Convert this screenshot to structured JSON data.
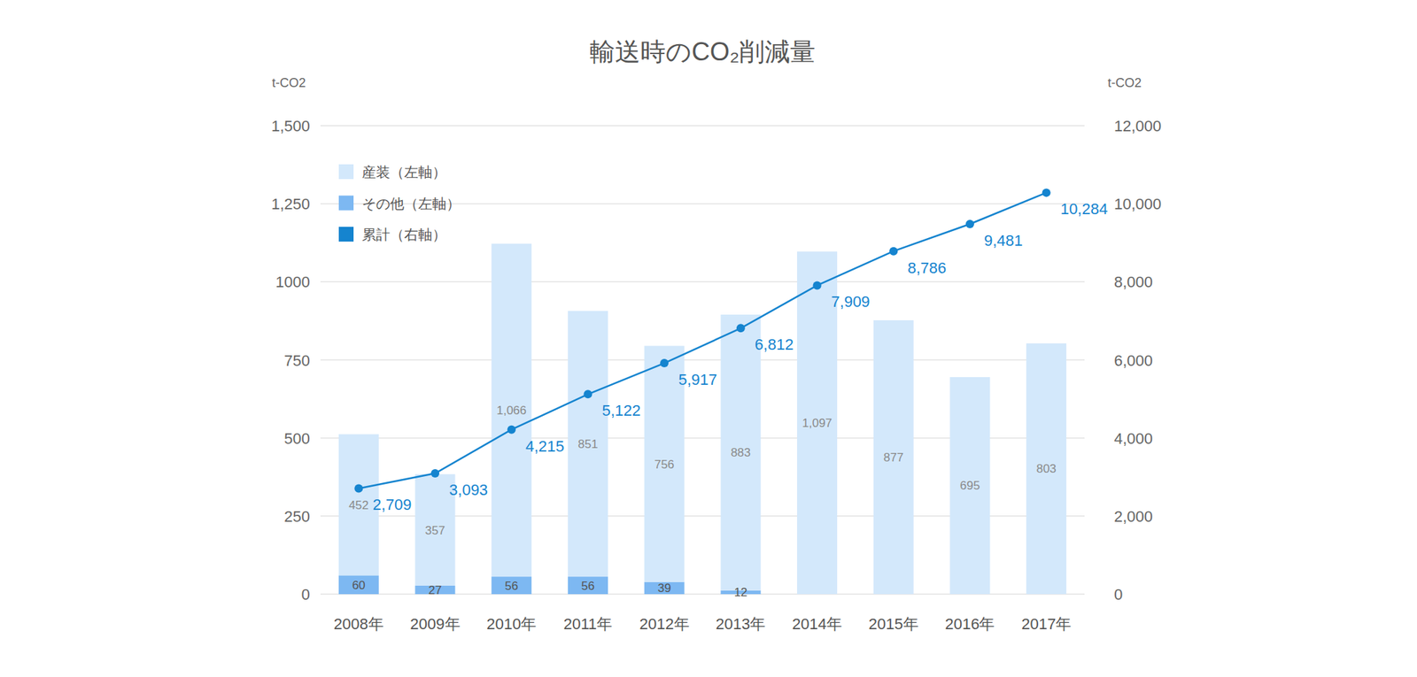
{
  "chart_data": {
    "type": "bar",
    "title": "輸送時のCO₂削減量",
    "ylabel": "t-CO2",
    "y2label": "t-CO2",
    "categories": [
      "2008年",
      "2009年",
      "2010年",
      "2011年",
      "2012年",
      "2013年",
      "2014年",
      "2015年",
      "2016年",
      "2017年"
    ],
    "series": [
      {
        "name": "産装（左軸）",
        "color": "#d3e8fb",
        "values": [
          452,
          357,
          1066,
          851,
          756,
          883,
          1097,
          877,
          695,
          803
        ],
        "value_labels": [
          "452",
          "357",
          "1,066",
          "851",
          "756",
          "883",
          "1,097",
          "877",
          "695",
          "803"
        ]
      },
      {
        "name": "その他（左軸）",
        "color": "#7db8f2",
        "values": [
          60,
          27,
          56,
          56,
          39,
          12,
          null,
          null,
          null,
          null
        ],
        "value_labels": [
          "60",
          "27",
          "56",
          "56",
          "39",
          "12",
          null,
          null,
          null,
          null
        ]
      },
      {
        "name": "累計（右軸）",
        "type": "line",
        "axis": "y2",
        "color": "#1584cf",
        "marker": "circle",
        "values": [
          2709,
          3093,
          4215,
          5122,
          5917,
          6812,
          7909,
          8786,
          9481,
          10284
        ],
        "value_labels": [
          "2,709",
          "3,093",
          "4,215",
          "5,122",
          "5,917",
          "6,812",
          "7,909",
          "8,786",
          "9,481",
          "10,284"
        ]
      }
    ],
    "stacked": true,
    "data_labels": true,
    "grid": true,
    "legend": "top-left",
    "ylim": [
      0,
      1500
    ],
    "yticks": [
      0,
      250,
      500,
      750,
      1000,
      {
        "value": 1250,
        "label": "1,250"
      },
      {
        "value": 1500,
        "label": "1,500"
      }
    ],
    "y2lim": [
      0,
      12000
    ],
    "y2ticks": [
      0,
      {
        "value": 2000,
        "label": "2,000"
      },
      {
        "value": 4000,
        "label": "4,000"
      },
      {
        "value": 6000,
        "label": "6,000"
      },
      {
        "value": 8000,
        "label": "8,000"
      },
      {
        "value": 10000,
        "label": "10,000"
      },
      {
        "value": 12000,
        "label": "12,000"
      }
    ]
  }
}
